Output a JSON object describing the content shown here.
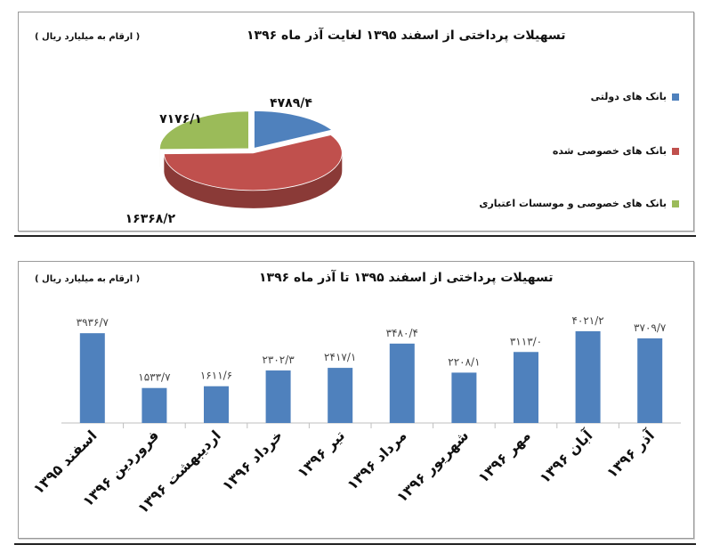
{
  "chart_data": [
    {
      "type": "pie",
      "title": "تسهیلات پرداختی از اسفند ۱۳۹۵ لغایت آذر ماه ۱۳۹۶",
      "unit_note": "( ارقام به میلیارد ریال )",
      "legend_position": "right",
      "slices": [
        {
          "name": "بانک های دولتی",
          "value": 4789.4,
          "label": "۴۷۸۹/۴",
          "color": "#4f81bd"
        },
        {
          "name": "بانک های خصوصی شده",
          "value": 16368.2,
          "label": "۱۶۳۶۸/۲",
          "color": "#c0504d"
        },
        {
          "name": "بانک های خصوصی و موسسات اعتباری",
          "value": 7176.1,
          "label": "۷۱۷۶/۱",
          "color": "#9bbb59"
        }
      ]
    },
    {
      "type": "bar",
      "title": "تسهیلات پرداختی از اسفند ۱۳۹۵ تا آذر ماه  ۱۳۹۶",
      "unit_note": "( ارقام به میلیارد ریال )",
      "bar_color": "#4f81bd",
      "categories": [
        "اسفند ۱۳۹۵",
        "فروردین ۱۳۹۶",
        "اردیبهشت ۱۳۹۶",
        "خرداد ۱۳۹۶",
        "تیر ۱۳۹۶",
        "مرداد ۱۳۹۶",
        "شهریور ۱۳۹۶",
        "مهر ۱۳۹۶",
        "آبان ۱۳۹۶",
        "آذر ۱۳۹۶"
      ],
      "values": [
        3936.7,
        1533.7,
        1611.6,
        2302.3,
        2417.1,
        3480.4,
        2208.1,
        3113.0,
        4021.2,
        3709.7
      ],
      "value_labels": [
        "۳۹۳۶/۷",
        "۱۵۳۳/۷",
        "۱۶۱۱/۶",
        "۲۳۰۲/۳",
        "۲۴۱۷/۱",
        "۳۴۸۰/۴",
        "۲۲۰۸/۱",
        "۳۱۱۳/۰",
        "۴۰۲۱/۲",
        "۳۷۰۹/۷"
      ],
      "ylim": [
        0,
        4200
      ]
    }
  ]
}
